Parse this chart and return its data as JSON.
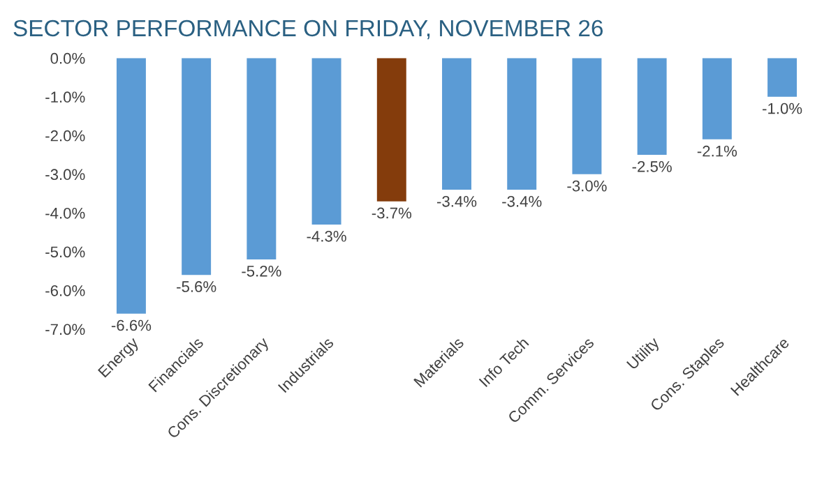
{
  "chart_data": {
    "type": "bar",
    "title": "SECTOR PERFORMANCE ON FRIDAY, NOVEMBER 26",
    "categories": [
      "Energy",
      "Financials",
      "Cons. Discretionary",
      "Industrials",
      null,
      "Materials",
      "Info Tech",
      "Comm. Services",
      "Utility",
      "Cons. Staples",
      "Healthcare"
    ],
    "values": [
      -6.6,
      -5.6,
      -5.2,
      -4.3,
      -3.7,
      -3.4,
      -3.4,
      -3.0,
      -2.5,
      -2.1,
      -1.0
    ],
    "colors": [
      "#5b9bd5",
      "#5b9bd5",
      "#5b9bd5",
      "#5b9bd5",
      "#843c0c",
      "#5b9bd5",
      "#5b9bd5",
      "#5b9bd5",
      "#5b9bd5",
      "#5b9bd5",
      "#5b9bd5"
    ],
    "value_labels": [
      "-6.6%",
      "-5.6%",
      "-5.2%",
      "-4.3%",
      "-3.7%",
      "-3.4%",
      "-3.4%",
      "-3.0%",
      "-2.5%",
      "-2.1%",
      "-1.0%"
    ],
    "ylim": [
      -7.0,
      0.0
    ],
    "yticks": [
      {
        "value": 0.0,
        "label": "0.0%"
      },
      {
        "value": -1.0,
        "label": "-1.0%"
      },
      {
        "value": -2.0,
        "label": "-2.0%"
      },
      {
        "value": -3.0,
        "label": "-3.0%"
      },
      {
        "value": -4.0,
        "label": "-4.0%"
      },
      {
        "value": -5.0,
        "label": "-5.0%"
      },
      {
        "value": -6.0,
        "label": "-6.0%"
      },
      {
        "value": -7.0,
        "label": "-7.0%"
      }
    ],
    "grid": false,
    "legend": false
  }
}
